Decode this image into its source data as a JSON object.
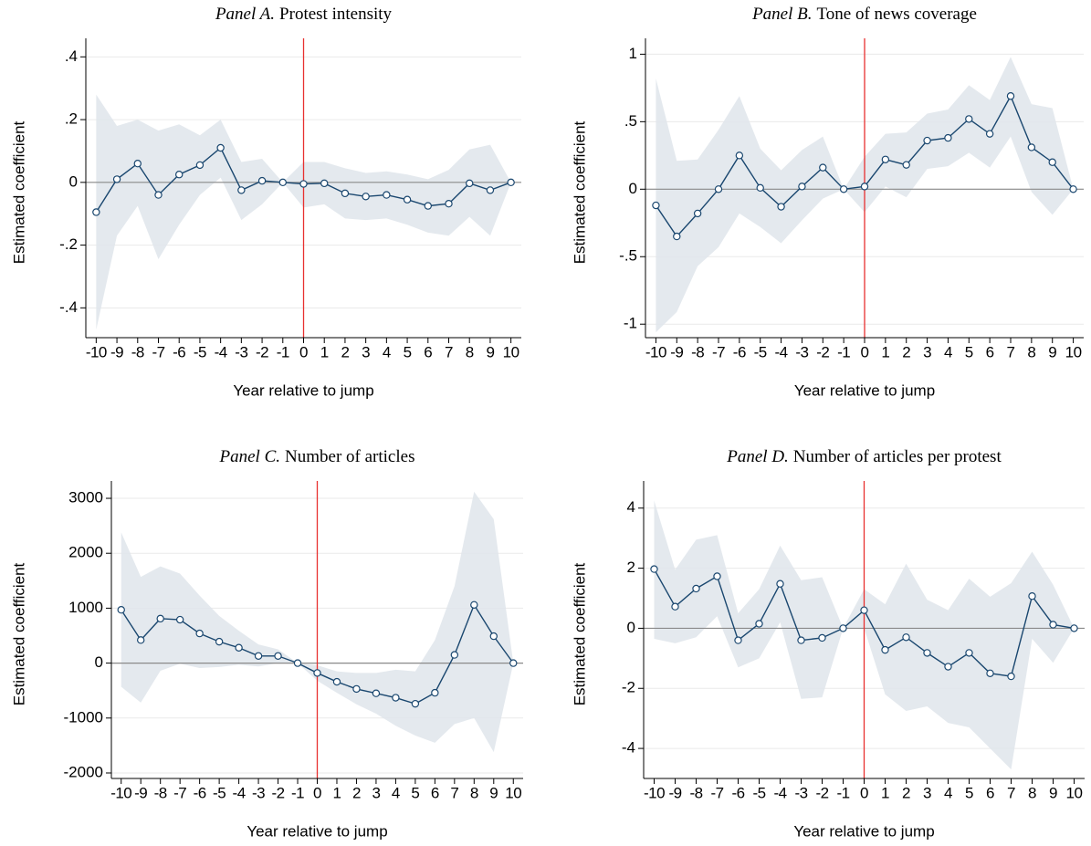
{
  "chart_data": [
    {
      "type": "line",
      "panel": "Panel A.",
      "title": "Protest intensity",
      "xlabel": "Year relative to jump",
      "ylabel": "Estimated coefficient",
      "x": [
        -10,
        -9,
        -8,
        -7,
        -6,
        -5,
        -4,
        -3,
        -2,
        -1,
        0,
        1,
        2,
        3,
        4,
        5,
        6,
        7,
        8,
        9,
        10
      ],
      "series": [
        {
          "name": "Estimate",
          "color": "#1a476f",
          "band_color": "#dfe5eb",
          "values": [
            -0.095,
            0.01,
            0.06,
            -0.04,
            0.025,
            0.055,
            0.11,
            -0.025,
            0.005,
            0,
            -0.005,
            -0.003,
            -0.035,
            -0.045,
            -0.04,
            -0.055,
            -0.075,
            -0.068,
            -0.003,
            -0.025,
            0
          ],
          "upper": [
            0.28,
            0.18,
            0.2,
            0.165,
            0.185,
            0.15,
            0.2,
            0.065,
            0.075,
            0,
            0.065,
            0.065,
            0.045,
            0.03,
            0.035,
            0.025,
            0.01,
            0.04,
            0.105,
            0.12,
            0
          ],
          "lower": [
            -0.47,
            -0.17,
            -0.075,
            -0.245,
            -0.135,
            -0.04,
            0.015,
            -0.12,
            -0.07,
            0,
            -0.08,
            -0.07,
            -0.115,
            -0.12,
            -0.115,
            -0.135,
            -0.16,
            -0.17,
            -0.11,
            -0.17,
            0
          ]
        }
      ],
      "xlim": [
        -10.5,
        10.5
      ],
      "xticks": [
        -10,
        -9,
        -8,
        -7,
        -6,
        -5,
        -4,
        -3,
        -2,
        -1,
        0,
        1,
        2,
        3,
        4,
        5,
        6,
        7,
        8,
        9,
        10
      ],
      "ylim": [
        -0.495,
        0.43
      ],
      "yticks": [
        {
          "value": -0.4,
          "label": "-.4"
        },
        {
          "value": -0.2,
          "label": "-.2"
        },
        0,
        {
          "value": 0.2,
          "label": ".2"
        },
        {
          "value": 0.4,
          "label": ".4"
        }
      ],
      "grid": true,
      "hline": 0,
      "vline": 0,
      "vline_color": "#e8302f"
    },
    {
      "type": "line",
      "panel": "Panel B.",
      "title": "Tone of news coverage",
      "xlabel": "Year relative to jump",
      "ylabel": "Estimated coefficient",
      "x": [
        -10,
        -9,
        -8,
        -7,
        -6,
        -5,
        -4,
        -3,
        -2,
        -1,
        0,
        1,
        2,
        3,
        4,
        5,
        6,
        7,
        8,
        9,
        10
      ],
      "series": [
        {
          "name": "Estimate",
          "color": "#1a476f",
          "band_color": "#dfe5eb",
          "values": [
            -0.12,
            -0.35,
            -0.18,
            0,
            0.25,
            0.01,
            -0.13,
            0.02,
            0.16,
            0,
            0.02,
            0.22,
            0.18,
            0.36,
            0.38,
            0.52,
            0.41,
            0.69,
            0.31,
            0.2,
            0
          ],
          "upper": [
            0.82,
            0.21,
            0.22,
            0.44,
            0.69,
            0.3,
            0.14,
            0.29,
            0.39,
            0,
            0.24,
            0.41,
            0.42,
            0.56,
            0.59,
            0.77,
            0.66,
            0.98,
            0.63,
            0.6,
            0
          ],
          "lower": [
            -1.06,
            -0.91,
            -0.57,
            -0.43,
            -0.18,
            -0.28,
            -0.4,
            -0.23,
            -0.07,
            0,
            -0.17,
            0.02,
            -0.06,
            0.15,
            0.17,
            0.27,
            0.16,
            0.39,
            -0.02,
            -0.19,
            0
          ]
        }
      ],
      "xlim": [
        -10.5,
        10.5
      ],
      "xticks": [
        -10,
        -9,
        -8,
        -7,
        -6,
        -5,
        -4,
        -3,
        -2,
        -1,
        0,
        1,
        2,
        3,
        4,
        5,
        6,
        7,
        8,
        9,
        10
      ],
      "ylim": [
        -1.1,
        1.05
      ],
      "yticks": [
        -1,
        {
          "value": -0.5,
          "label": "-.5"
        },
        0,
        {
          "value": 0.5,
          "label": ".5"
        },
        1
      ],
      "grid": true,
      "hline": 0,
      "vline": 0,
      "vline_color": "#e8302f"
    },
    {
      "type": "line",
      "panel": "Panel C.",
      "title": "Number of articles",
      "xlabel": "Year relative to jump",
      "ylabel": "Estimated coefficient",
      "x": [
        -10,
        -9,
        -8,
        -7,
        -6,
        -5,
        -4,
        -3,
        -2,
        -1,
        0,
        1,
        2,
        3,
        4,
        5,
        6,
        7,
        8,
        9,
        10
      ],
      "series": [
        {
          "name": "Estimate",
          "color": "#1a476f",
          "band_color": "#dfe5eb",
          "values": [
            970,
            420,
            810,
            790,
            540,
            390,
            280,
            130,
            130,
            0,
            -180,
            -340,
            -470,
            -550,
            -630,
            -740,
            -540,
            150,
            1060,
            490,
            0
          ],
          "upper": [
            2380,
            1570,
            1760,
            1630,
            1230,
            860,
            590,
            340,
            250,
            0,
            -40,
            -150,
            -180,
            -180,
            -120,
            -150,
            420,
            1400,
            3120,
            2620,
            0
          ],
          "lower": [
            -430,
            -720,
            -140,
            -10,
            -90,
            -70,
            -30,
            -60,
            0,
            0,
            -320,
            -540,
            -750,
            -920,
            -1140,
            -1320,
            -1450,
            -1110,
            -1000,
            -1620,
            0
          ]
        }
      ],
      "xlim": [
        -10.5,
        10.5
      ],
      "xticks": [
        -10,
        -9,
        -8,
        -7,
        -6,
        -5,
        -4,
        -3,
        -2,
        -1,
        0,
        1,
        2,
        3,
        4,
        5,
        6,
        7,
        8,
        9,
        10
      ],
      "ylim": [
        -2100,
        3150
      ],
      "yticks": [
        -2000,
        -1000,
        0,
        1000,
        2000,
        3000
      ],
      "grid": true,
      "hline": 0,
      "vline": 0,
      "vline_color": "#e8302f"
    },
    {
      "type": "line",
      "panel": "Panel D.",
      "title": "Number of articles per protest",
      "xlabel": "Year relative to jump",
      "ylabel": "Estimated coefficient",
      "x": [
        -10,
        -9,
        -8,
        -7,
        -6,
        -5,
        -4,
        -3,
        -2,
        -1,
        0,
        1,
        2,
        3,
        4,
        5,
        6,
        7,
        8,
        9,
        10
      ],
      "series": [
        {
          "name": "Estimate",
          "color": "#1a476f",
          "band_color": "#dfe5eb",
          "values": [
            1.97,
            0.72,
            1.32,
            1.73,
            -0.4,
            0.15,
            1.48,
            -0.4,
            -0.32,
            0,
            0.6,
            -0.72,
            -0.3,
            -0.82,
            -1.28,
            -0.82,
            -1.5,
            -1.6,
            1.07,
            0.12,
            0
          ],
          "upper": [
            4.25,
            1.95,
            2.95,
            3.1,
            0.5,
            1.3,
            2.75,
            1.6,
            1.7,
            0,
            1.3,
            0.8,
            2.15,
            0.95,
            0.6,
            1.65,
            1.05,
            1.5,
            2.55,
            1.45,
            0
          ],
          "lower": [
            -0.35,
            -0.5,
            -0.3,
            0.4,
            -1.3,
            -1.0,
            0.2,
            -2.35,
            -2.3,
            0,
            0,
            -2.2,
            -2.75,
            -2.6,
            -3.15,
            -3.3,
            -4.0,
            -4.7,
            -0.35,
            -1.15,
            0
          ]
        }
      ],
      "xlim": [
        -10.5,
        10.5
      ],
      "xticks": [
        -10,
        -9,
        -8,
        -7,
        -6,
        -5,
        -4,
        -3,
        -2,
        -1,
        0,
        1,
        2,
        3,
        4,
        5,
        6,
        7,
        8,
        9,
        10
      ],
      "ylim": [
        -5,
        4.6
      ],
      "yticks": [
        -4,
        -2,
        0,
        2,
        4
      ],
      "grid": true,
      "hline": 0,
      "vline": 0,
      "vline_color": "#e8302f"
    }
  ]
}
